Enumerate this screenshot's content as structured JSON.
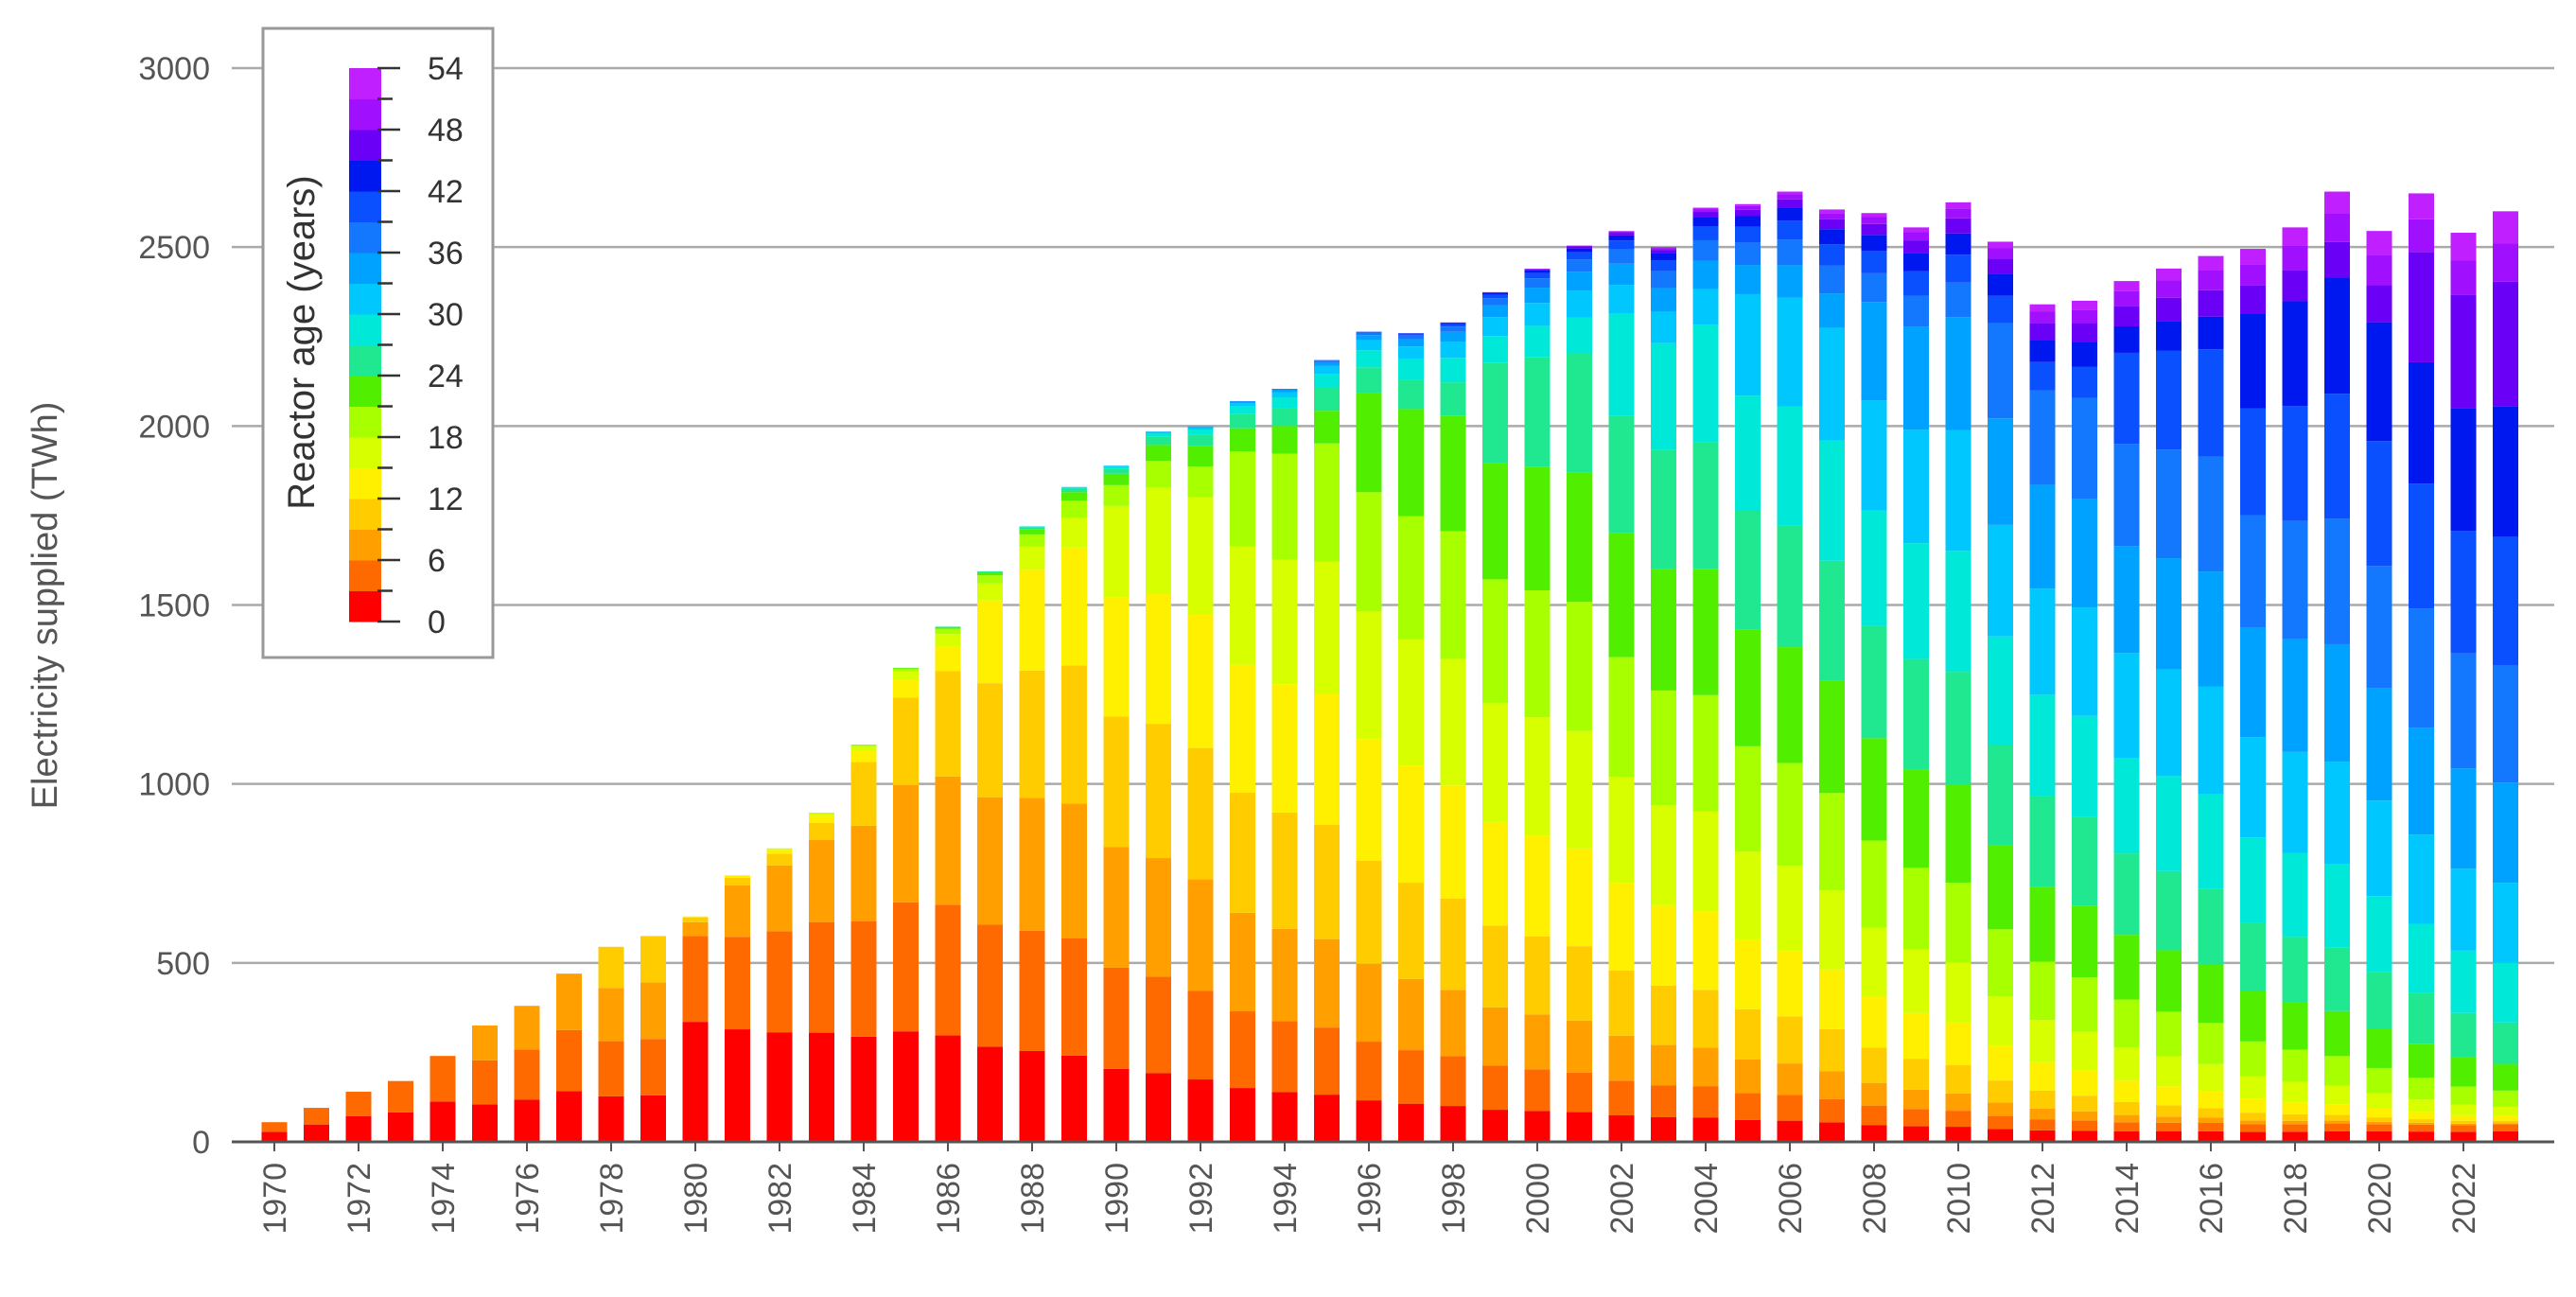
{
  "chart_data": {
    "type": "bar",
    "stacked": true,
    "title": "",
    "xlabel": "",
    "ylabel": "Electricity supplied (TWh)",
    "ylim": [
      0,
      3000
    ],
    "yticks": [
      0,
      500,
      1000,
      1500,
      2000,
      2500,
      3000
    ],
    "grid": "horizontal",
    "x": [
      1970,
      1971,
      1972,
      1973,
      1974,
      1975,
      1976,
      1977,
      1978,
      1979,
      1980,
      1981,
      1982,
      1983,
      1984,
      1985,
      1986,
      1987,
      1988,
      1989,
      1990,
      1991,
      1992,
      1993,
      1994,
      1995,
      1996,
      1997,
      1998,
      1999,
      2000,
      2001,
      2002,
      2003,
      2004,
      2005,
      2006,
      2007,
      2008,
      2009,
      2010,
      2011,
      2012,
      2013,
      2014,
      2015,
      2016,
      2017,
      2018,
      2019,
      2020,
      2021,
      2022,
      2023
    ],
    "xtick_labels": [
      "1970",
      "1972",
      "1974",
      "1976",
      "1978",
      "1980",
      "1982",
      "1984",
      "1986",
      "1988",
      "1990",
      "1992",
      "1994",
      "1996",
      "1998",
      "2000",
      "2002",
      "2004",
      "2006",
      "2008",
      "2010",
      "2012",
      "2014",
      "2016",
      "2018",
      "2020",
      "2022"
    ],
    "totals": [
      55,
      95,
      140,
      170,
      240,
      325,
      380,
      470,
      545,
      575,
      630,
      745,
      820,
      920,
      1110,
      1325,
      1440,
      1595,
      1720,
      1830,
      1890,
      1985,
      2000,
      2070,
      2105,
      2185,
      2265,
      2260,
      2290,
      2375,
      2440,
      2505,
      2545,
      2500,
      2610,
      2620,
      2655,
      2605,
      2595,
      2555,
      2625,
      2515,
      2340,
      2350,
      2405,
      2440,
      2475,
      2495,
      2555,
      2655,
      2545,
      2650,
      2540,
      2600
    ],
    "legend": {
      "title": "Reactor age (years)",
      "position": "top-left",
      "tick_labels": [
        "54",
        "48",
        "42",
        "36",
        "30",
        "24",
        "18",
        "12",
        "6",
        "0"
      ],
      "tick_values": [
        54,
        48,
        42,
        36,
        30,
        24,
        18,
        12,
        6,
        0
      ],
      "range": [
        0,
        54
      ]
    },
    "note": "Each bar is stacked by reactor-age band (3-year bands, colors from red=0 years to violet=54 years); band values are estimated from the picture."
  },
  "colors": {
    "grid": "#aaaaaa",
    "axis": "#555555",
    "legend_border": "#999999",
    "age_scale": [
      "#ff0000",
      "#ff6a00",
      "#ffa000",
      "#ffcc00",
      "#fff000",
      "#d8ff00",
      "#a8ff00",
      "#52ee00",
      "#1fe890",
      "#00e8d8",
      "#00c8ff",
      "#00a2ff",
      "#1478ff",
      "#0a50ff",
      "#0018f0",
      "#6a00f5",
      "#a010ff",
      "#c020ff"
    ]
  }
}
